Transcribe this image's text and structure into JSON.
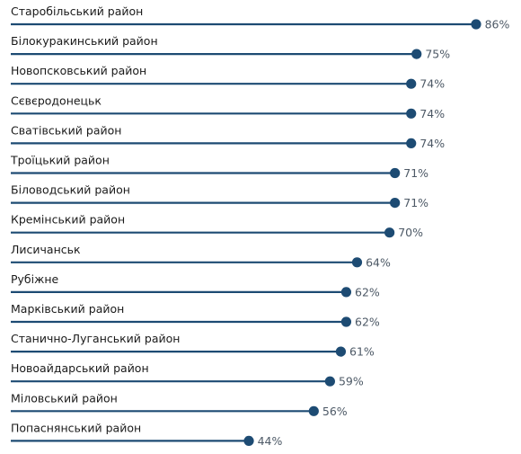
{
  "chart_data": {
    "type": "lollipop",
    "title": "",
    "xlabel": "",
    "ylabel": "",
    "xlim": [
      0,
      86
    ],
    "value_suffix": "%",
    "color": "#1d4b73",
    "grid": false,
    "legend": "none",
    "categories": [
      "Старобільський район",
      "Білокуракинський район",
      "Новопсковський район",
      "Сєвєродонецьк",
      "Сватівський район",
      "Троїцький район",
      "Біловодський район",
      "Кремінський район",
      "Лисичанськ",
      "Рубіжне",
      "Марківський район",
      "Станично-Луганський район",
      "Новоайдарський район",
      "Міловський район",
      "Попаснянський район"
    ],
    "values": [
      86,
      75,
      74,
      74,
      74,
      71,
      71,
      70,
      64,
      62,
      62,
      61,
      59,
      56,
      44
    ]
  }
}
